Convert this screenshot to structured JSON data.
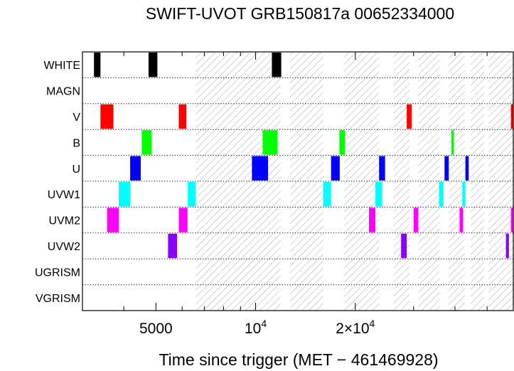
{
  "chart_data": {
    "type": "bar",
    "title": "SWIFT-UVOT GRB150817a 00652334000",
    "xlabel": "Time since trigger (MET − 461469928)",
    "x_scale": "log",
    "xlim": [
      3000,
      60000
    ],
    "x_ticks": [
      {
        "value": 5000,
        "label": "5000",
        "sup": ""
      },
      {
        "value": 10000,
        "label": "10",
        "sup": "4"
      },
      {
        "value": 20000,
        "label": "2×10",
        "sup": "4"
      }
    ],
    "categories": [
      "WHITE",
      "MAGN",
      "V",
      "B",
      "U",
      "UVW1",
      "UVM2",
      "UVW2",
      "UGRISM",
      "VGRISM"
    ],
    "shaded_intervals": [
      [
        6600,
        11900
      ],
      [
        12700,
        16000
      ],
      [
        18500,
        23600
      ],
      [
        26100,
        29200
      ],
      [
        31000,
        36000
      ],
      [
        38300,
        42800
      ],
      [
        44600,
        49000
      ],
      [
        50500,
        60000
      ]
    ],
    "series": [
      {
        "name": "WHITE",
        "color": "#000000",
        "intervals": [
          [
            3250,
            3400
          ],
          [
            4750,
            5050
          ],
          [
            11200,
            11950
          ]
        ]
      },
      {
        "name": "MAGN",
        "color": "#000000",
        "intervals": []
      },
      {
        "name": "V",
        "color": "#ff0000",
        "intervals": [
          [
            3400,
            3720
          ],
          [
            5860,
            6180
          ],
          [
            28600,
            29600
          ],
          [
            59000,
            60000
          ]
        ]
      },
      {
        "name": "B",
        "color": "#00ff00",
        "intervals": [
          [
            4530,
            4850
          ],
          [
            10500,
            11650
          ],
          [
            17900,
            18600
          ],
          [
            39000,
            39700
          ]
        ]
      },
      {
        "name": "U",
        "color": "#0000ff",
        "intervals": [
          [
            4180,
            4500
          ],
          [
            9750,
            10900
          ],
          [
            16900,
            17950
          ],
          [
            23600,
            24600
          ],
          [
            37200,
            38300
          ],
          [
            43000,
            44000
          ]
        ]
      },
      {
        "name": "UVW1",
        "color": "#00ffff",
        "intervals": [
          [
            3860,
            4180
          ],
          [
            6240,
            6580
          ],
          [
            16000,
            16900
          ],
          [
            23000,
            24100
          ],
          [
            35800,
            36900
          ],
          [
            42100,
            43000
          ]
        ]
      },
      {
        "name": "UVM2",
        "color": "#ff00ff",
        "intervals": [
          [
            3560,
            3860
          ],
          [
            5860,
            6230
          ],
          [
            22000,
            23000
          ],
          [
            30000,
            31000
          ],
          [
            41300,
            42300
          ],
          [
            59000,
            60000
          ]
        ]
      },
      {
        "name": "UVW2",
        "color": "#8800ff",
        "intervals": [
          [
            5440,
            5790
          ],
          [
            27500,
            28600
          ],
          [
            57000,
            58200
          ]
        ]
      },
      {
        "name": "UGRISM",
        "color": "#000000",
        "intervals": []
      },
      {
        "name": "VGRISM",
        "color": "#000000",
        "intervals": []
      }
    ]
  }
}
